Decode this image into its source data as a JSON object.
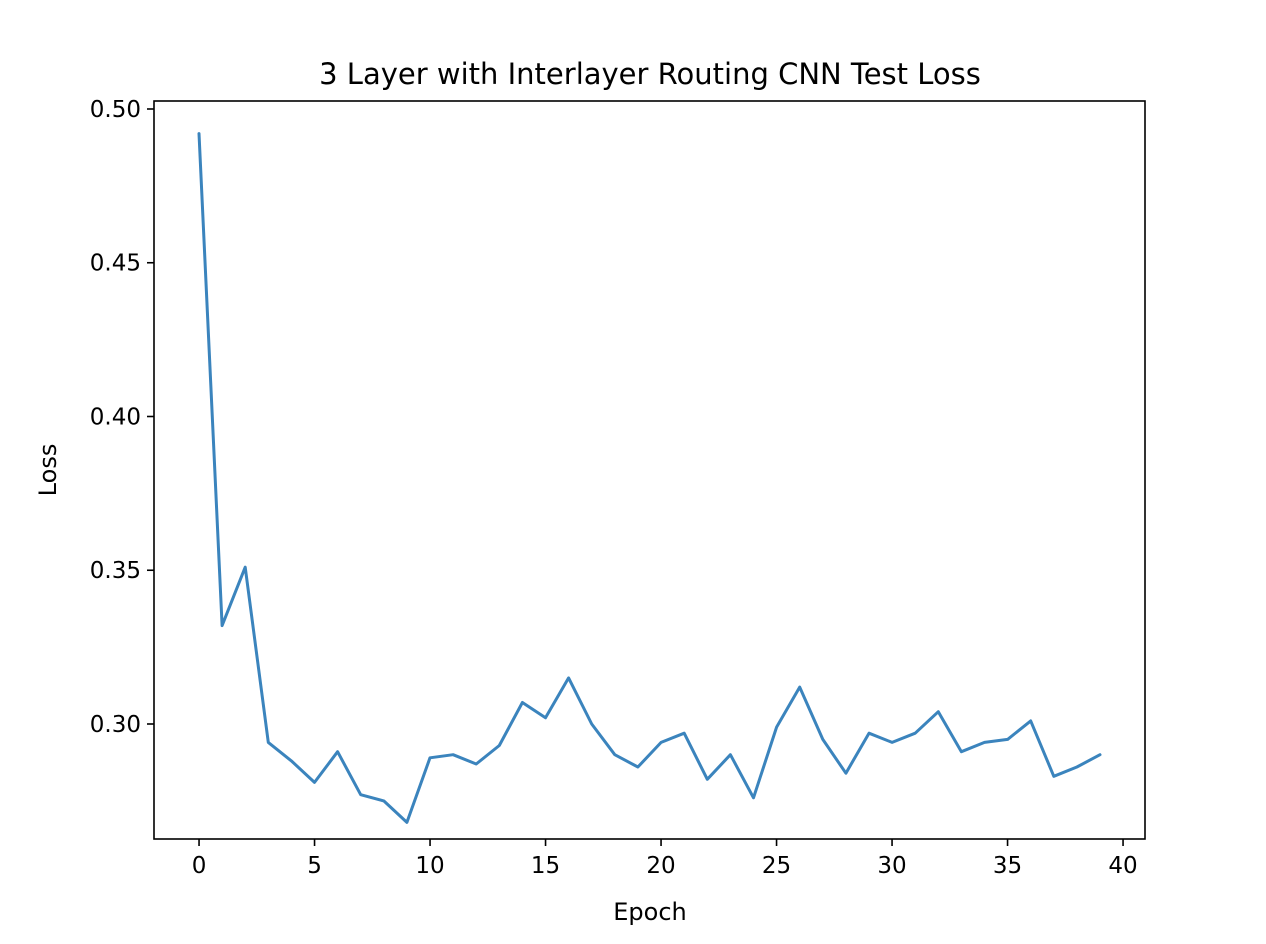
{
  "chart_data": {
    "type": "line",
    "title": "3 Layer with Interlayer Routing CNN Test Loss",
    "xlabel": "Epoch",
    "ylabel": "Loss",
    "xlim": [
      -1.95,
      40.95
    ],
    "ylim": [
      0.2626,
      0.5026
    ],
    "xticks": [
      0,
      5,
      10,
      15,
      20,
      25,
      30,
      35,
      40
    ],
    "xtick_labels": [
      "0",
      "5",
      "10",
      "15",
      "20",
      "25",
      "30",
      "35",
      "40"
    ],
    "yticks": [
      0.3,
      0.35,
      0.4,
      0.45,
      0.5
    ],
    "ytick_labels": [
      "0.30",
      "0.35",
      "0.40",
      "0.45",
      "0.50"
    ],
    "grid": false,
    "legend": "none",
    "series": [
      {
        "color": "#3b84bd",
        "x": [
          0,
          1,
          2,
          3,
          4,
          5,
          6,
          7,
          8,
          9,
          10,
          11,
          12,
          13,
          14,
          15,
          16,
          17,
          18,
          19,
          20,
          21,
          22,
          23,
          24,
          25,
          26,
          27,
          28,
          29,
          30,
          31,
          32,
          33,
          34,
          35,
          36,
          37,
          38,
          39
        ],
        "y": [
          0.492,
          0.332,
          0.351,
          0.294,
          0.288,
          0.281,
          0.291,
          0.277,
          0.275,
          0.268,
          0.289,
          0.29,
          0.287,
          0.293,
          0.307,
          0.302,
          0.315,
          0.3,
          0.29,
          0.286,
          0.294,
          0.297,
          0.282,
          0.29,
          0.276,
          0.299,
          0.312,
          0.295,
          0.284,
          0.297,
          0.294,
          0.297,
          0.304,
          0.291,
          0.294,
          0.295,
          0.301,
          0.283,
          0.286,
          0.29
        ]
      }
    ]
  }
}
